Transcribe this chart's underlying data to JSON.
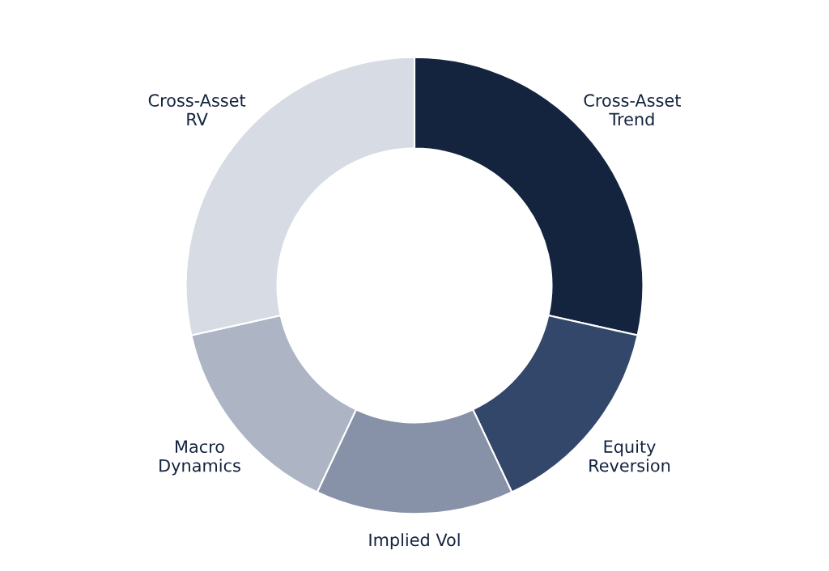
{
  "chart_data": {
    "type": "donut",
    "categories": [
      "Cross-Asset\nTrend",
      "Equity\nReversion",
      "Implied Vol",
      "Macro\nDynamics",
      "Cross-Asset\nRV"
    ],
    "values": [
      28.5,
      14.5,
      14,
      14.5,
      28.5
    ],
    "colors": [
      "#14243f",
      "#33476b",
      "#8792a8",
      "#adb4c4",
      "#d7dce4"
    ],
    "legend": false
  }
}
